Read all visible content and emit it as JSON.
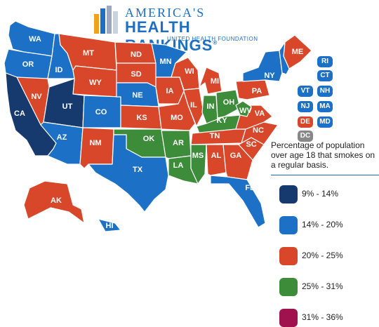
{
  "header": {
    "line1": "AMERICA'S",
    "line2": "HEALTH RANKINGS",
    "registered": "®",
    "line3": "UNITED HEALTH FOUNDATION"
  },
  "colors": {
    "c1": "#163a6e",
    "c2": "#1c71c6",
    "c3": "#d9472b",
    "c4": "#3c8c3a",
    "c5": "#a0124e",
    "nodata": "#888888"
  },
  "legend": {
    "title": "Percentage of population over age 18 that smokes on a regular basis.",
    "items": [
      {
        "label": "9% - 14%",
        "color": "#163a6e"
      },
      {
        "label": "14% - 20%",
        "color": "#1c71c6"
      },
      {
        "label": "20% - 25%",
        "color": "#d9472b"
      },
      {
        "label": "25% - 31%",
        "color": "#3c8c3a"
      },
      {
        "label": "31% - 36%",
        "color": "#a0124e"
      }
    ]
  },
  "states": {
    "WA": "14% - 20%",
    "OR": "14% - 20%",
    "CA": "9% - 14%",
    "NV": "20% - 25%",
    "ID": "14% - 20%",
    "MT": "20% - 25%",
    "WY": "20% - 25%",
    "UT": "9% - 14%",
    "AZ": "14% - 20%",
    "CO": "14% - 20%",
    "NM": "20% - 25%",
    "ND": "20% - 25%",
    "SD": "20% - 25%",
    "NE": "14% - 20%",
    "KS": "20% - 25%",
    "OK": "25% - 31%",
    "TX": "14% - 20%",
    "MN": "14% - 20%",
    "IA": "20% - 25%",
    "MO": "20% - 25%",
    "AR": "25% - 31%",
    "LA": "25% - 31%",
    "WI": "20% - 25%",
    "IL": "20% - 25%",
    "MI": "20% - 25%",
    "IN": "25% - 31%",
    "OH": "25% - 31%",
    "KY": "25% - 31%",
    "TN": "20% - 25%",
    "MS": "25% - 31%",
    "AL": "20% - 25%",
    "GA": "20% - 25%",
    "FL": "14% - 20%",
    "SC": "20% - 25%",
    "NC": "20% - 25%",
    "VA": "20% - 25%",
    "WV": "25% - 31%",
    "PA": "20% - 25%",
    "NY": "14% - 20%",
    "ME": "20% - 25%",
    "AK": "20% - 25%",
    "HI": "14% - 20%",
    "RI": "14% - 20%",
    "CT": "14% - 20%",
    "VT": "14% - 20%",
    "NH": "14% - 20%",
    "NJ": "14% - 20%",
    "MA": "14% - 20%",
    "DE": "20% - 25%",
    "MD": "14% - 20%",
    "DC": "no data"
  },
  "badges": [
    "RI",
    "CT",
    "VT",
    "NH",
    "NJ",
    "MA",
    "DE",
    "MD",
    "DC"
  ]
}
